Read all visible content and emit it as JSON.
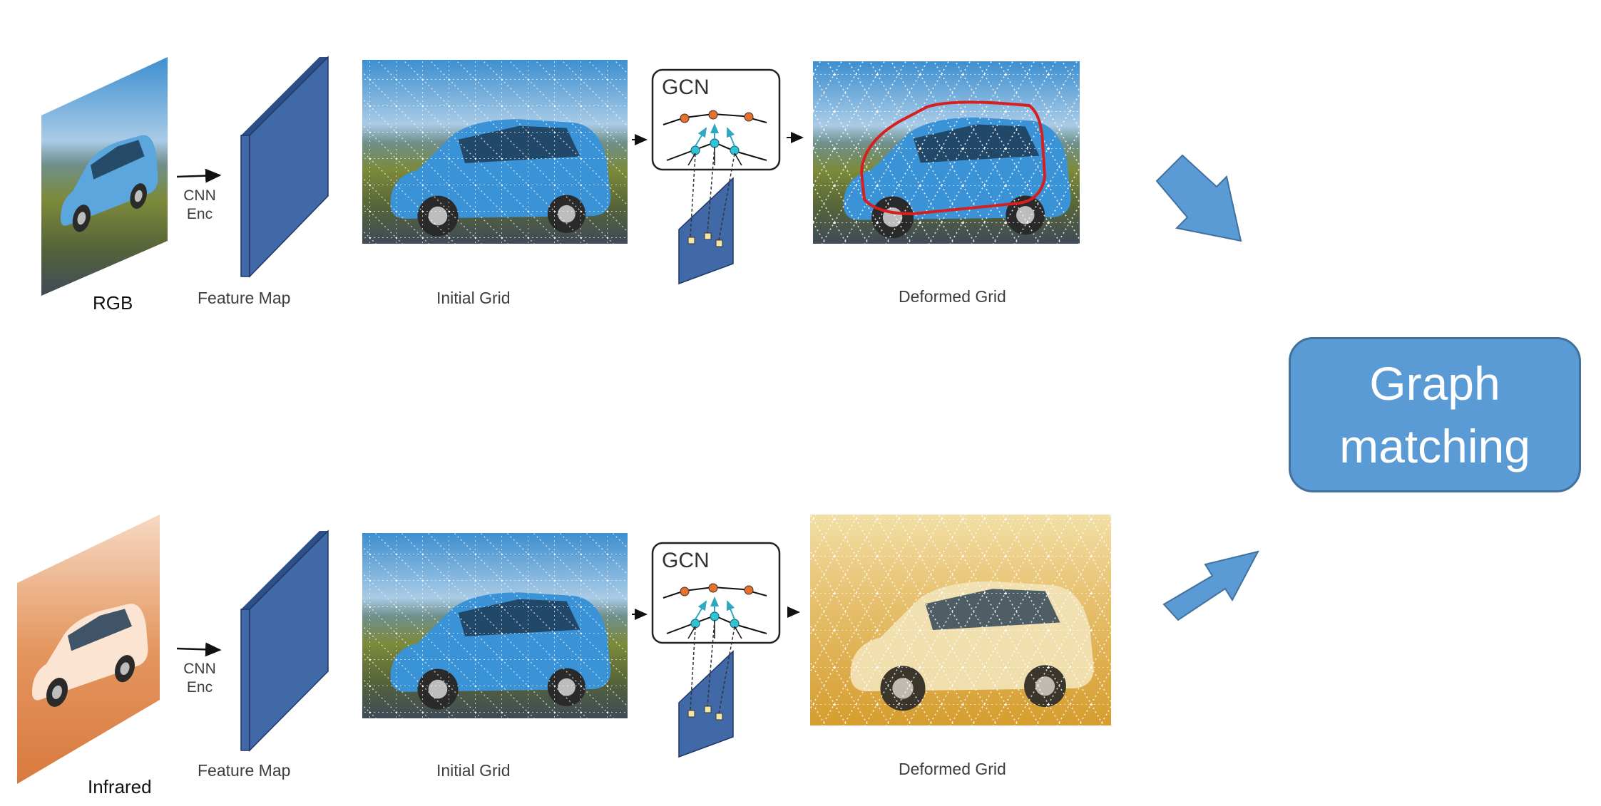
{
  "rows": [
    {
      "id": "rgb",
      "input_label": "RGB",
      "encoder_label": [
        "CNN",
        "Enc"
      ],
      "feature_map_label": "Feature Map",
      "initial_grid_label": "Initial Grid",
      "gcn_label": "GCN",
      "deformed_grid_label": "Deformed Grid"
    },
    {
      "id": "infrared",
      "input_label": "Infrared",
      "encoder_label": [
        "CNN",
        "Enc"
      ],
      "feature_map_label": "Feature Map",
      "initial_grid_label": "Initial Grid",
      "gcn_label": "GCN",
      "deformed_grid_label": "Deformed Grid"
    }
  ],
  "output": {
    "label_line1": "Graph",
    "label_line2": "matching"
  },
  "colors": {
    "feature_map": "#4169a8",
    "graph_box": "#5b9bd5",
    "graph_box_border": "#41719c",
    "block_arrow": "#5b9bd5",
    "gcn_node_top": "#e8702a",
    "gcn_node_bottom": "#2fc3d6",
    "contour": "#d62020",
    "infrared_tint": "#e08a4a",
    "deformed_infrared_tint": "#d9a84a"
  }
}
